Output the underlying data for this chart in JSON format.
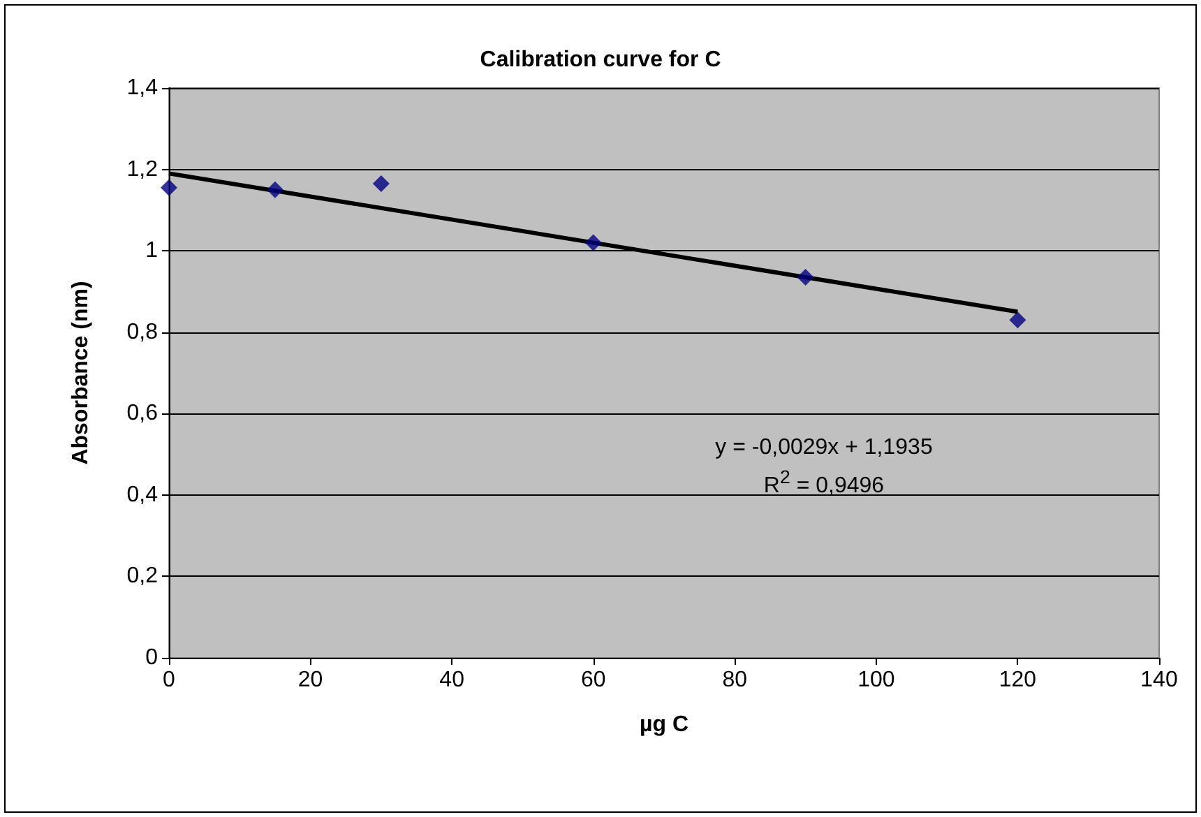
{
  "chart_data": {
    "type": "scatter",
    "title": "Calibration curve for C",
    "xlabel": "µg C",
    "ylabel": "Absorbance (nm)",
    "series": [
      {
        "color": "#000080",
        "x": [
          0,
          15,
          30,
          60,
          90,
          120
        ],
        "values": [
          1.155,
          1.15,
          1.165,
          1.02,
          0.935,
          0.83
        ],
        "marker": "diamond"
      },
      {
        "type": "line",
        "color": "#000000",
        "x": [
          0,
          120
        ],
        "values": [
          1.19,
          0.85
        ],
        "marker": "none",
        "line_style": "solid"
      }
    ],
    "xlim": [
      0,
      140
    ],
    "xticks": [
      0,
      20,
      40,
      60,
      80,
      100,
      120,
      140
    ],
    "ylim": [
      0,
      1.4
    ],
    "yticks": [
      {
        "value": 0,
        "label": "0"
      },
      {
        "value": 0.2,
        "label": "0,2"
      },
      {
        "value": 0.4,
        "label": "0,4"
      },
      {
        "value": 0.6,
        "label": "0,6"
      },
      {
        "value": 0.8,
        "label": "0,8"
      },
      {
        "value": 1,
        "label": "1"
      },
      {
        "value": 1.2,
        "label": "1,2"
      },
      {
        "value": 1.4,
        "label": "1,4"
      }
    ],
    "grid": "y",
    "annotations": [
      "y = -0,0029x + 1,1935",
      "R$^{2}$ = 0,9496"
    ]
  }
}
